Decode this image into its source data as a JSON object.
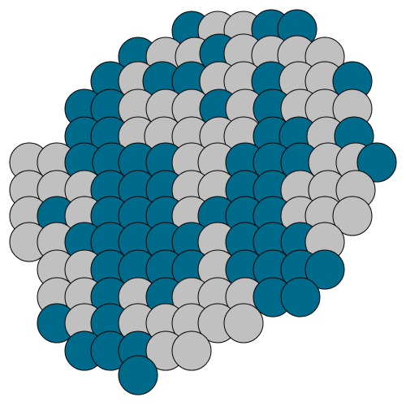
{
  "figure": {
    "subject": "atomic-cluster-ball-model",
    "background_color": "#ffffff",
    "outline_color": "#000000",
    "atom_types": [
      {
        "id": "teal",
        "color": "#006a8a"
      },
      {
        "id": "gray",
        "color": "#c0c0c0"
      }
    ]
  }
}
